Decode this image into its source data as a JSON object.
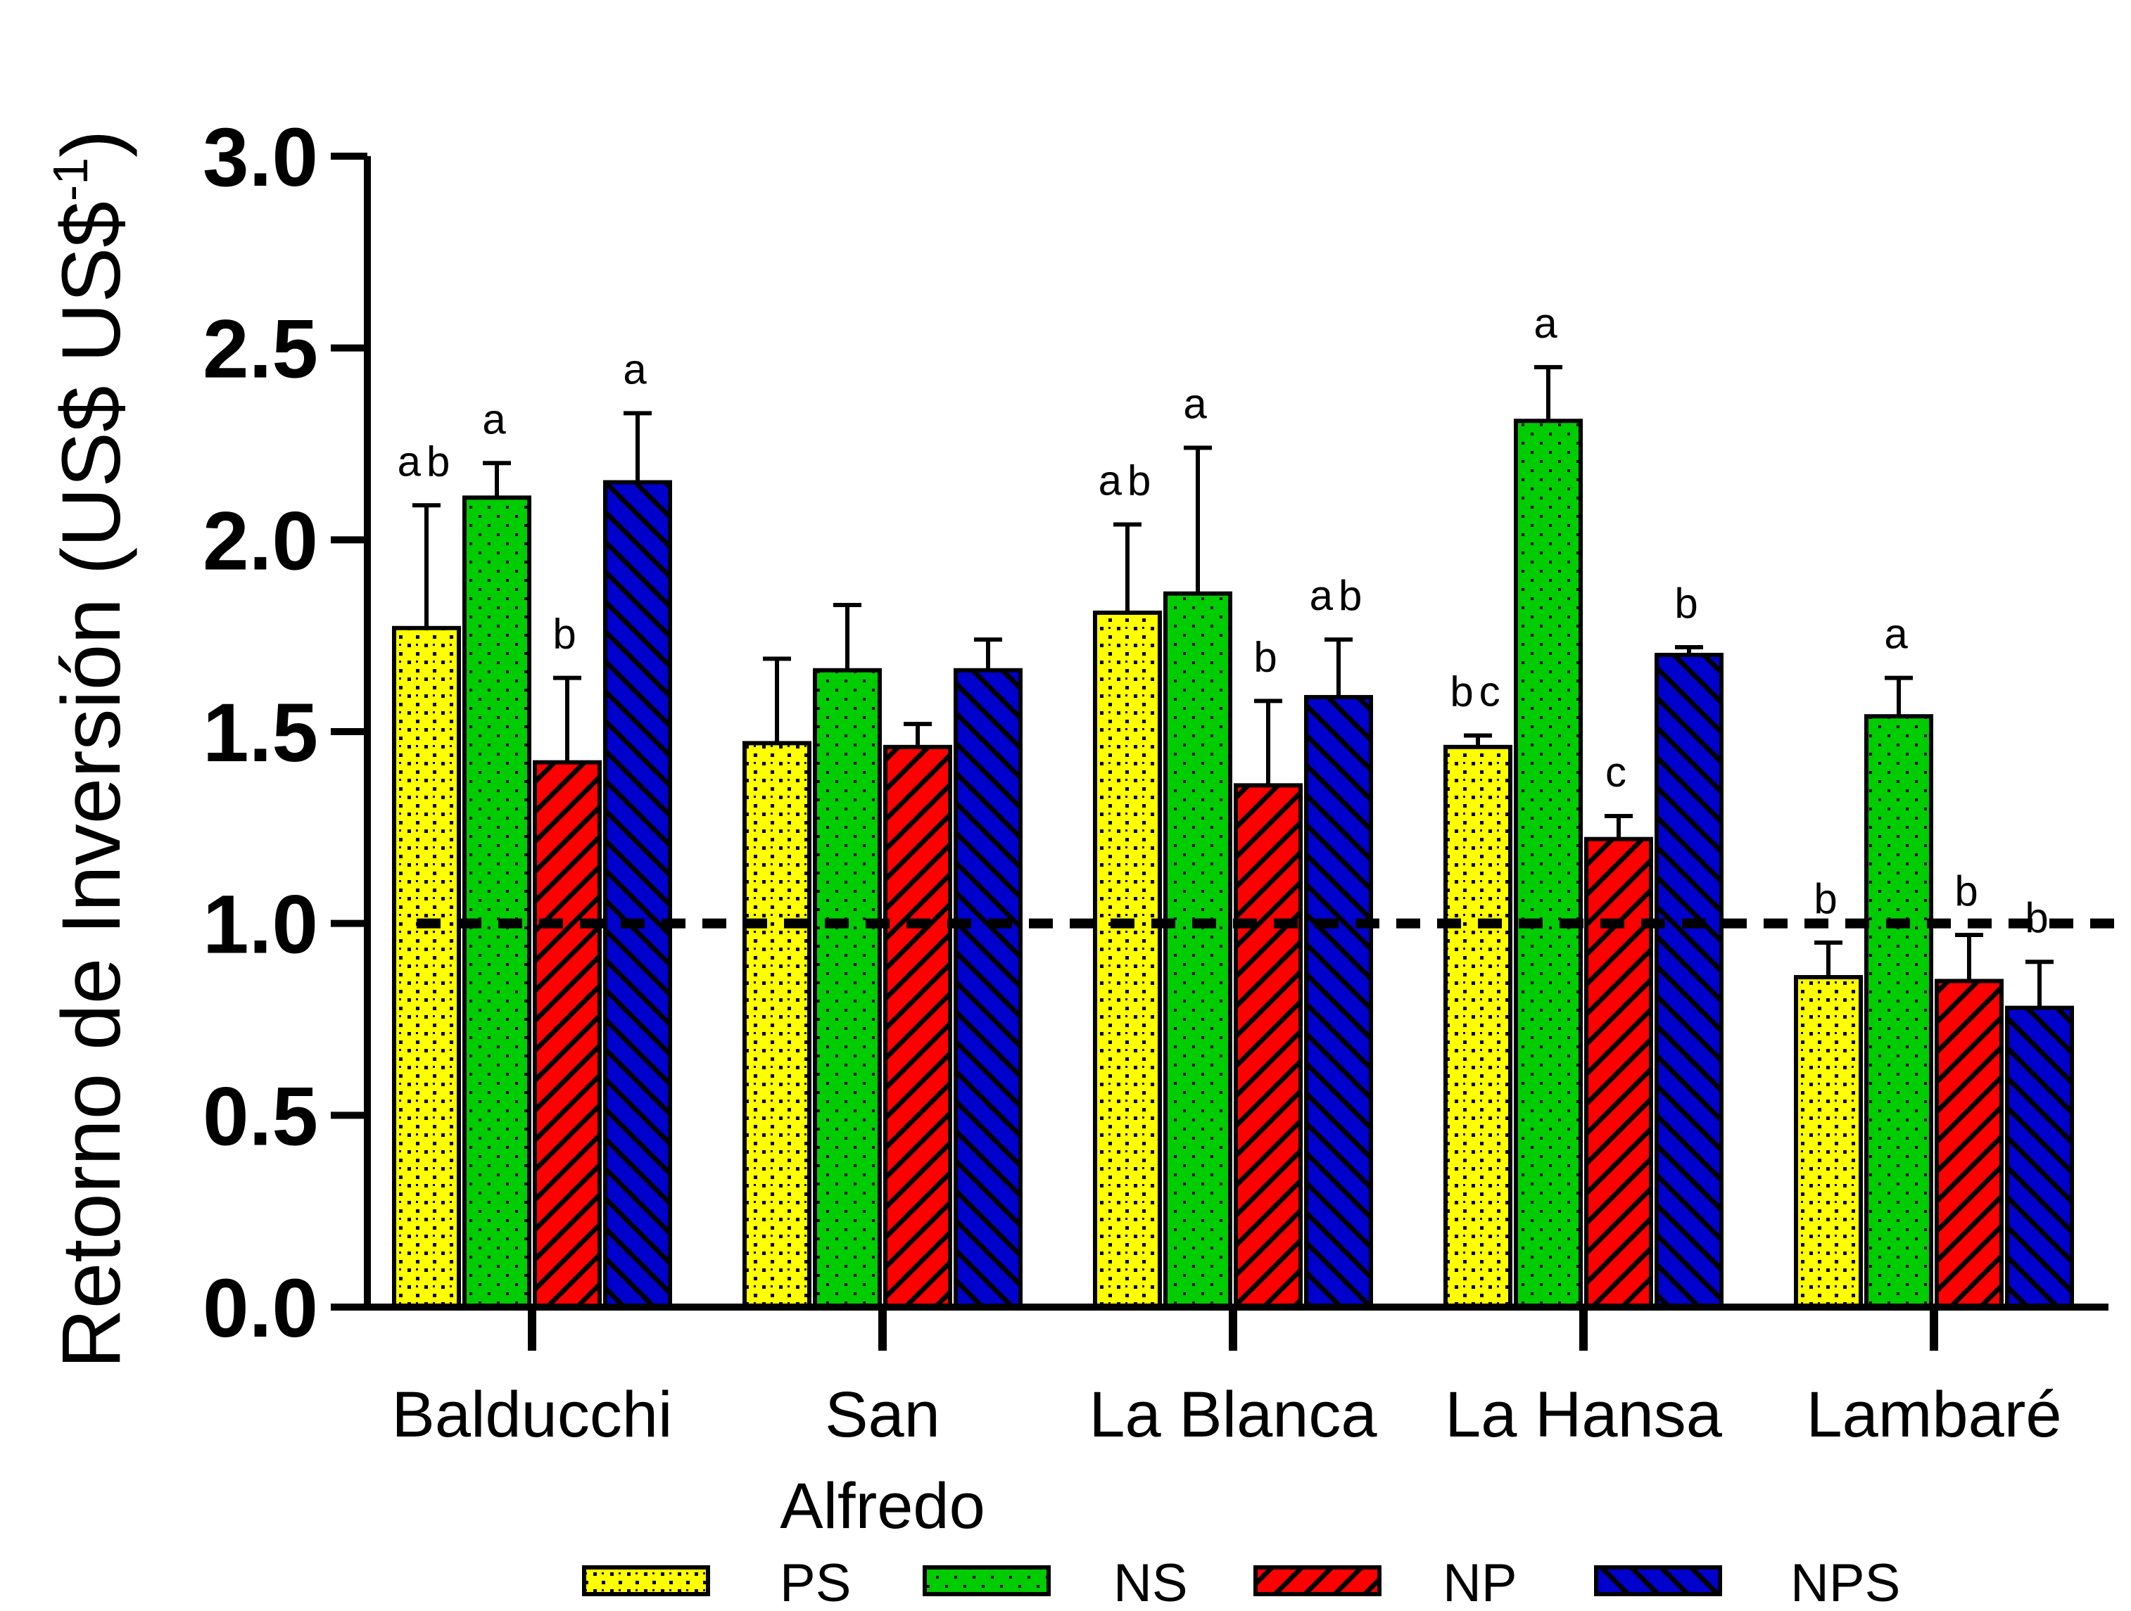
{
  "chart_data": {
    "type": "bar",
    "title": "",
    "ylabel_main": "Retorno de Inversión (US$ US$",
    "ylabel_sup": "-1",
    "ylabel_close": ")",
    "ylim": [
      0,
      3.0
    ],
    "yticks": [
      {
        "value": 0.0,
        "label": "0.0"
      },
      {
        "value": 0.5,
        "label": "0.5"
      },
      {
        "value": 1.0,
        "label": "1.0"
      },
      {
        "value": 1.5,
        "label": "1.5"
      },
      {
        "value": 2.0,
        "label": "2.0"
      },
      {
        "value": 2.5,
        "label": "2.5"
      },
      {
        "value": 3.0,
        "label": "3.0"
      }
    ],
    "reference_line": 1.0,
    "categories": [
      {
        "line1": "Balducchi",
        "line2": ""
      },
      {
        "line1": "San",
        "line2": "Alfredo"
      },
      {
        "line1": "La Blanca",
        "line2": ""
      },
      {
        "line1": "La Hansa",
        "line2": ""
      },
      {
        "line1": "Lambaré",
        "line2": ""
      }
    ],
    "series": [
      {
        "name": "PS",
        "color": "#ffff00",
        "pattern": "dots",
        "values": [
          1.77,
          1.47,
          1.81,
          1.46,
          0.86
        ],
        "errors": [
          0.32,
          0.22,
          0.23,
          0.03,
          0.09
        ],
        "sig": [
          "ab",
          "",
          "ab",
          "bc",
          "b"
        ]
      },
      {
        "name": "NS",
        "color": "#00cc00",
        "pattern": "fine-dots",
        "values": [
          2.11,
          1.66,
          1.86,
          2.31,
          1.54
        ],
        "errors": [
          0.09,
          0.17,
          0.38,
          0.14,
          0.1
        ],
        "sig": [
          "a",
          "",
          "a",
          "a",
          "a"
        ]
      },
      {
        "name": "NP",
        "color": "#ff0000",
        "pattern": "diagonal-right",
        "values": [
          1.42,
          1.46,
          1.36,
          1.22,
          0.85
        ],
        "errors": [
          0.22,
          0.06,
          0.22,
          0.06,
          0.12
        ],
        "sig": [
          "b",
          "",
          "b",
          "c",
          "b"
        ]
      },
      {
        "name": "NPS",
        "color": "#0000cc",
        "pattern": "diagonal-left",
        "values": [
          2.15,
          1.66,
          1.59,
          1.7,
          0.78
        ],
        "errors": [
          0.18,
          0.08,
          0.15,
          0.02,
          0.12
        ],
        "sig": [
          "a",
          "",
          "ab",
          "b",
          "b"
        ]
      }
    ],
    "legend": {
      "position": "bottom",
      "entries": [
        "PS",
        "NS",
        "NP",
        "NPS"
      ]
    },
    "grid": false
  }
}
